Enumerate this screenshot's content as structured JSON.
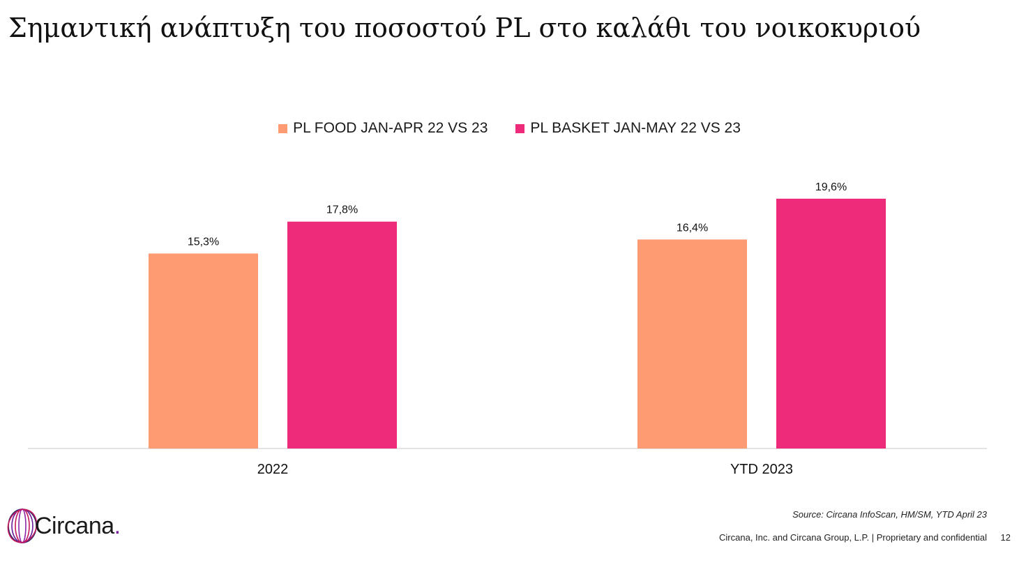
{
  "title": "Σημαντική ανάπτυξη του ποσοστού PL στο καλάθι του νοικοκυριού",
  "chart_data": {
    "type": "bar",
    "categories": [
      "2022",
      "YTD 2023"
    ],
    "series": [
      {
        "name": "PL FOOD JAN-APR 22 VS 23",
        "values": [
          15.3,
          16.4
        ],
        "labels": [
          "15,3%",
          "16,4%"
        ],
        "color": "#FF9B72"
      },
      {
        "name": "PL BASKET JAN-MAY 22 VS 23",
        "values": [
          17.8,
          19.6
        ],
        "labels": [
          "17,8%",
          "19,6%"
        ],
        "color": "#EE2B7B"
      }
    ],
    "ylim": [
      0,
      22
    ],
    "legend_position": "top-center",
    "grid": false
  },
  "source": "Source: Circana InfoScan, HM/SM, YTD April 23",
  "footer": "Circana, Inc. and Circana Group, L.P. |  Proprietary and confidential",
  "page_number": "12",
  "logo": {
    "text": "Circana",
    "dot": ".",
    "dot_color": "#7B1FA2",
    "icon": "circana-globe-icon"
  }
}
